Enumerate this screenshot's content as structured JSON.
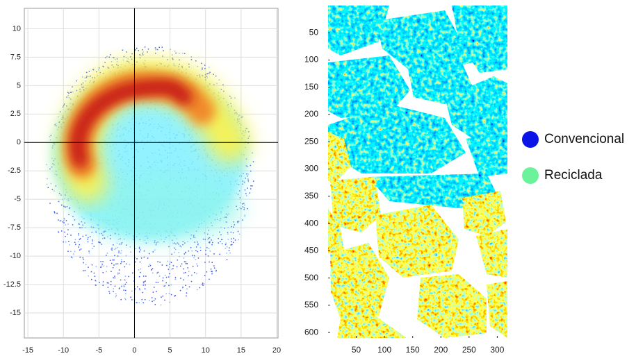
{
  "chart_data": [
    {
      "type": "scatter",
      "xlim": [
        -15.5,
        20.2
      ],
      "ylim": [
        -17.2,
        11.8
      ],
      "xticks": [
        -15,
        -10,
        -5,
        0,
        5,
        10,
        15,
        20
      ],
      "yticks": [
        -15,
        -12.5,
        -10,
        -7.5,
        -5,
        -2.5,
        0,
        2.5,
        5,
        7.5,
        10
      ],
      "grid": true
    },
    {
      "type": "image",
      "xlim": [
        0,
        318
      ],
      "ylim": [
        0,
        610
      ],
      "y_inverted": true,
      "xticks": [
        50,
        100,
        150,
        200,
        250,
        300
      ],
      "yticks": [
        50,
        100,
        150,
        200,
        250,
        300,
        350,
        400,
        450,
        500,
        550,
        600
      ],
      "series": [
        {
          "name": "Convencional",
          "color": "#0a14e6"
        },
        {
          "name": "Reciclada",
          "color": "#6cf29a"
        }
      ]
    }
  ]
}
